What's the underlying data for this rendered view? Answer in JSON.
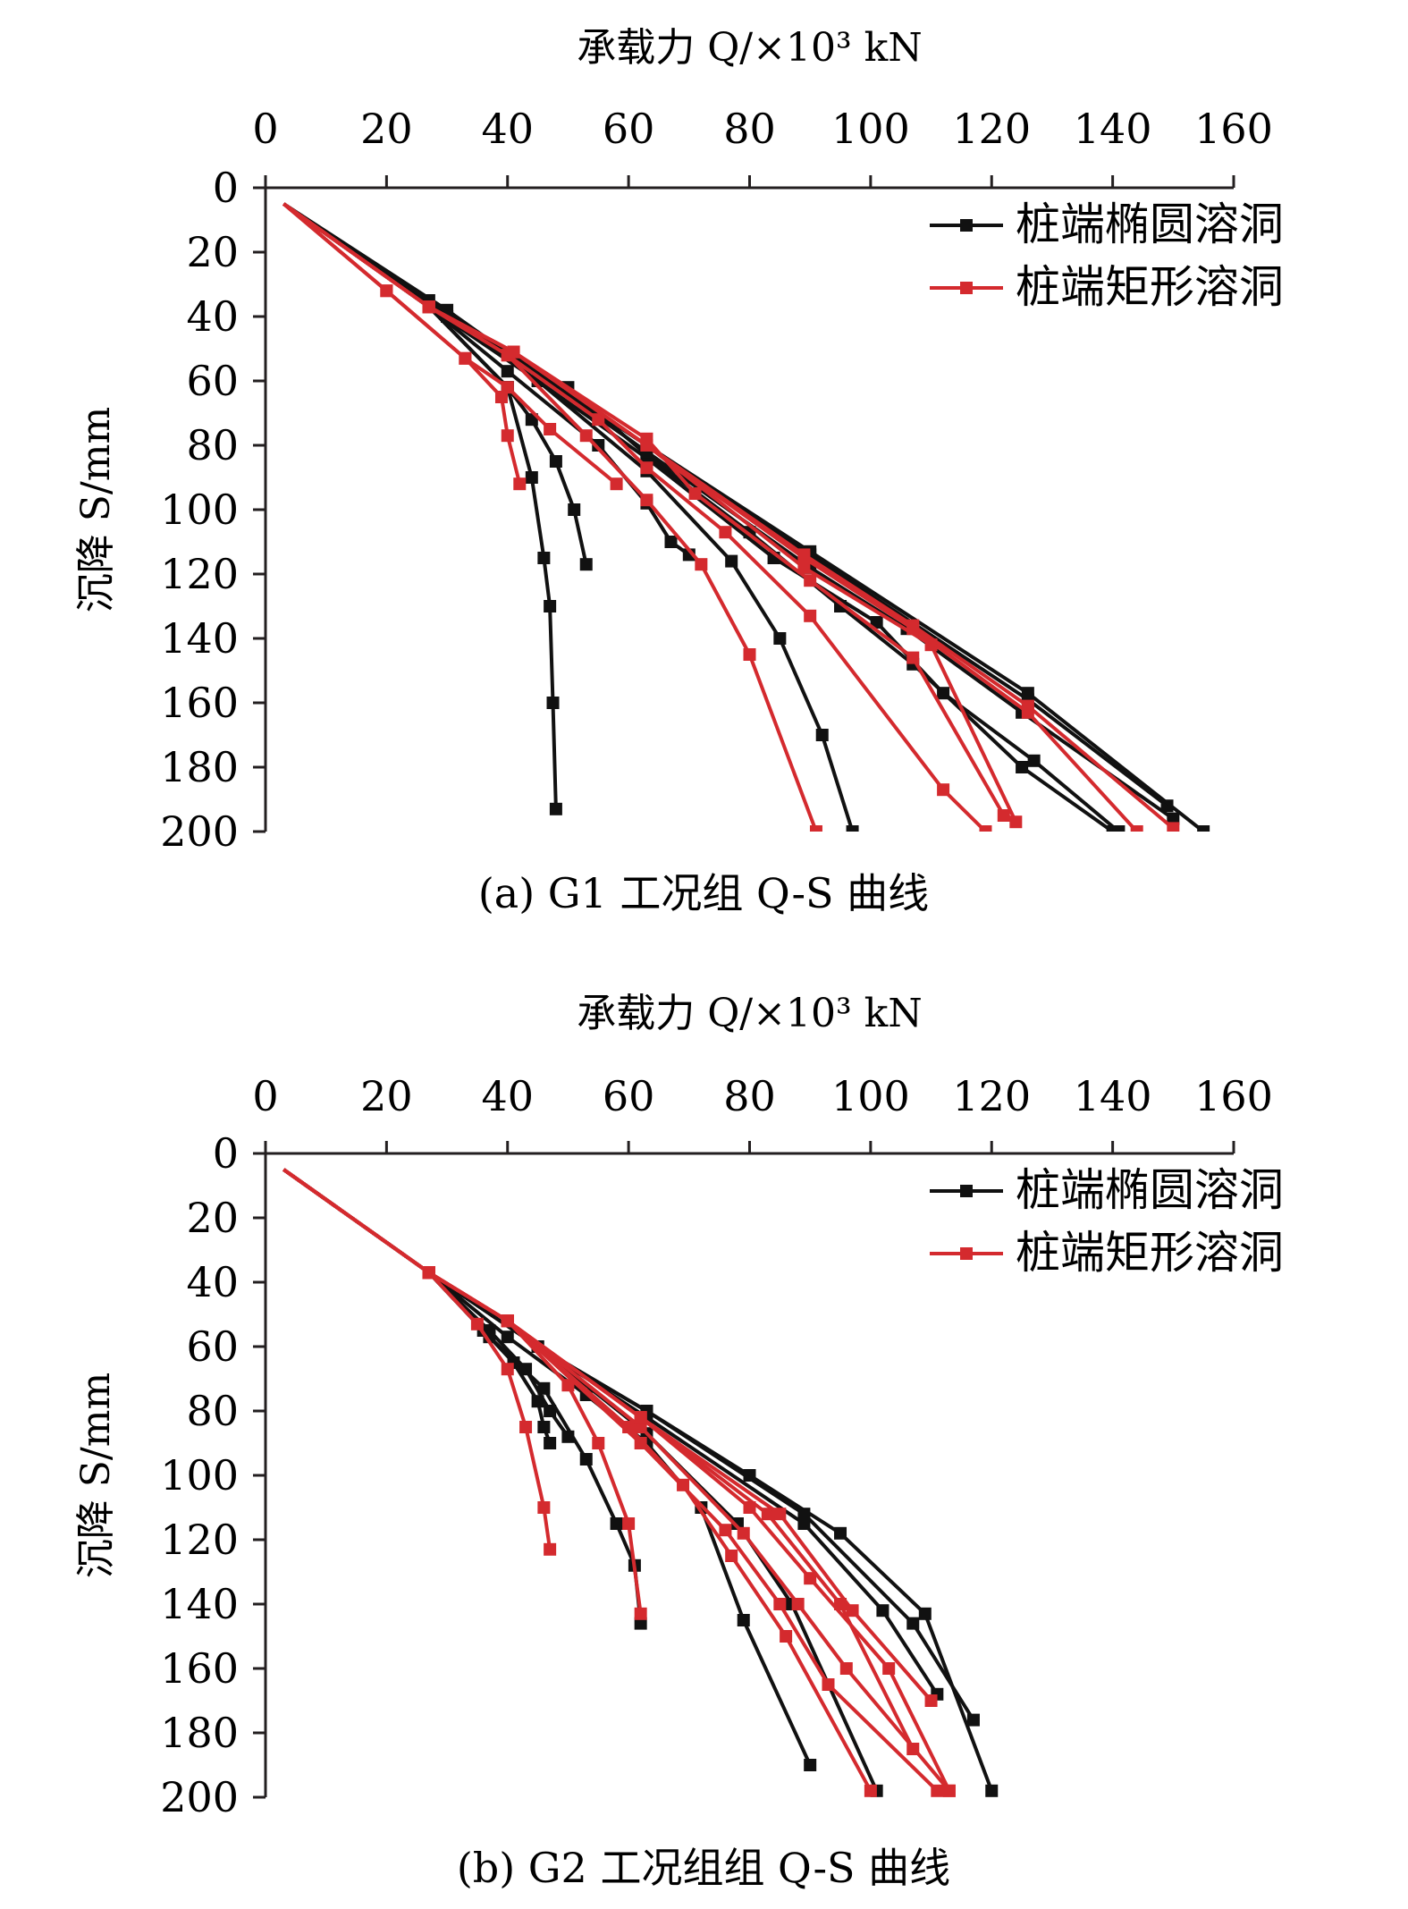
{
  "charts": [
    {
      "caption": "(a) G1 工况组 Q-S 曲线",
      "chart_data": {
        "type": "line",
        "xlabel": "承载力 Q/×10³ kN",
        "ylabel": "沉降 S/mm",
        "xlim": [
          0,
          160
        ],
        "ylim": [
          0,
          200
        ],
        "y_inverted": true,
        "x_axis_position": "top",
        "xticks": [
          0,
          20,
          40,
          60,
          80,
          100,
          120,
          140,
          160
        ],
        "yticks": [
          0,
          20,
          40,
          60,
          80,
          100,
          120,
          140,
          160,
          180,
          200
        ],
        "legend": "top-right",
        "series": [
          {
            "name": "桩端椭圆溶洞",
            "color": "#111111",
            "x": [
              3,
              27,
              40,
              44,
              46,
              47,
              47.5,
              48
            ],
            "y": [
              5,
              37,
              62,
              90,
              115,
              130,
              160,
              193
            ]
          },
          {
            "name": "",
            "color": "#111111",
            "x": [
              3,
              27,
              40,
              44,
              48,
              51,
              53
            ],
            "y": [
              5,
              37,
              62,
              72,
              85,
              100,
              117
            ]
          },
          {
            "name": "",
            "color": "#111111",
            "x": [
              3,
              27,
              40,
              55,
              63,
              67,
              70
            ],
            "y": [
              5,
              37,
              57,
              80,
              98,
              110,
              114
            ]
          },
          {
            "name": "",
            "color": "#111111",
            "x": [
              3,
              27,
              45,
              63,
              77,
              85,
              92,
              97
            ],
            "y": [
              5,
              37,
              60,
              88,
              116,
              140,
              170,
              200
            ]
          },
          {
            "name": "",
            "color": "#111111",
            "x": [
              3,
              30,
              50,
              63,
              80,
              95,
              107,
              125,
              140
            ],
            "y": [
              5,
              40,
              62,
              83,
              107,
              130,
              148,
              180,
              200
            ]
          },
          {
            "name": "",
            "color": "#111111",
            "x": [
              3,
              30,
              63,
              84,
              101,
              112,
              127,
              141
            ],
            "y": [
              5,
              40,
              84,
              115,
              135,
              157,
              178,
              200
            ]
          },
          {
            "name": "",
            "color": "#111111",
            "x": [
              3,
              30,
              63,
              90,
              106,
              125,
              150
            ],
            "y": [
              5,
              38,
              82,
              118,
              137,
              163,
              196
            ]
          },
          {
            "name": "",
            "color": "#111111",
            "x": [
              3,
              27,
              63,
              90,
              126,
              149
            ],
            "y": [
              5,
              35,
              80,
              114,
              159,
              192
            ]
          },
          {
            "name": "",
            "color": "#111111",
            "x": [
              3,
              27,
              63,
              90,
              126,
              155
            ],
            "y": [
              5,
              35,
              80,
              113,
              157,
              200
            ]
          },
          {
            "name": "桩端矩形溶洞",
            "color": "#d42a2e",
            "x": [
              3,
              20,
              33,
              39,
              40,
              42
            ],
            "y": [
              5,
              32,
              53,
              65,
              77,
              92
            ]
          },
          {
            "name": "",
            "color": "#d42a2e",
            "x": [
              3,
              20,
              33,
              40,
              47,
              58
            ],
            "y": [
              5,
              32,
              53,
              62,
              75,
              92
            ]
          },
          {
            "name": "",
            "color": "#d42a2e",
            "x": [
              3,
              27,
              40,
              53,
              63,
              72,
              80,
              91
            ],
            "y": [
              5,
              37,
              52,
              77,
              97,
              117,
              145,
              200
            ]
          },
          {
            "name": "",
            "color": "#d42a2e",
            "x": [
              3,
              27,
              40,
              55,
              63,
              76,
              90,
              112,
              119
            ],
            "y": [
              5,
              37,
              52,
              72,
              87,
              107,
              133,
              187,
              200
            ]
          },
          {
            "name": "",
            "color": "#d42a2e",
            "x": [
              3,
              27,
              41,
              63,
              71,
              90,
              107,
              122
            ],
            "y": [
              5,
              37,
              51,
              78,
              95,
              122,
              146,
              195
            ]
          },
          {
            "name": "",
            "color": "#d42a2e",
            "x": [
              3,
              27,
              41,
              63,
              89,
              110,
              124
            ],
            "y": [
              5,
              37,
              51,
              80,
              118,
              142,
              197
            ]
          },
          {
            "name": "",
            "color": "#d42a2e",
            "x": [
              3,
              27,
              41,
              63,
              89,
              107,
              126,
              144
            ],
            "y": [
              5,
              37,
              51,
              80,
              115,
              137,
              163,
              200
            ]
          },
          {
            "name": "",
            "color": "#d42a2e",
            "x": [
              3,
              27,
              41,
              63,
              89,
              107,
              126,
              150
            ],
            "y": [
              5,
              37,
              51,
              80,
              114,
              136,
              161,
              199
            ]
          }
        ]
      }
    },
    {
      "caption": "(b) G2 工况组组 Q-S 曲线",
      "chart_data": {
        "type": "line",
        "xlabel": "承载力 Q/×10³ kN",
        "ylabel": "沉降 S/mm",
        "xlim": [
          0,
          160
        ],
        "ylim": [
          0,
          200
        ],
        "y_inverted": true,
        "x_axis_position": "top",
        "xticks": [
          0,
          20,
          40,
          60,
          80,
          100,
          120,
          140,
          160
        ],
        "yticks": [
          0,
          20,
          40,
          60,
          80,
          100,
          120,
          140,
          160,
          180,
          200
        ],
        "legend": "top-right",
        "series": [
          {
            "name": "桩端椭圆溶洞",
            "color": "#111111",
            "x": [
              3,
              27,
              36,
              41,
              45,
              46,
              47
            ],
            "y": [
              5,
              37,
              55,
              65,
              77,
              85,
              90
            ]
          },
          {
            "name": "",
            "color": "#111111",
            "x": [
              3,
              27,
              37,
              43,
              47,
              50
            ],
            "y": [
              5,
              37,
              55,
              67,
              80,
              88
            ]
          },
          {
            "name": "",
            "color": "#111111",
            "x": [
              3,
              27,
              37,
              46,
              53,
              58,
              61,
              62
            ],
            "y": [
              5,
              37,
              57,
              73,
              95,
              115,
              128,
              146
            ]
          },
          {
            "name": "",
            "color": "#111111",
            "x": [
              3,
              27,
              40,
              53,
              63,
              72,
              79,
              90
            ],
            "y": [
              5,
              37,
              57,
              75,
              90,
              110,
              145,
              190
            ]
          },
          {
            "name": "",
            "color": "#111111",
            "x": [
              3,
              27,
              45,
              63,
              78,
              87,
              101
            ],
            "y": [
              5,
              37,
              60,
              87,
              115,
              140,
              198
            ]
          },
          {
            "name": "",
            "color": "#111111",
            "x": [
              3,
              27,
              45,
              63,
              80,
              95,
              109,
              120
            ],
            "y": [
              5,
              37,
              60,
              80,
              100,
              118,
              143,
              198
            ]
          },
          {
            "name": "",
            "color": "#111111",
            "x": [
              3,
              27,
              45,
              63,
              89,
              107,
              117
            ],
            "y": [
              5,
              37,
              60,
              80,
              112,
              146,
              176
            ]
          },
          {
            "name": "",
            "color": "#111111",
            "x": [
              3,
              27,
              45,
              63,
              89,
              102,
              111
            ],
            "y": [
              5,
              37,
              60,
              82,
              115,
              142,
              168
            ]
          },
          {
            "name": "桩端矩形溶洞",
            "color": "#d42a2e",
            "x": [
              3,
              27,
              35,
              40,
              43,
              46,
              47
            ],
            "y": [
              5,
              37,
              53,
              67,
              85,
              110,
              123
            ]
          },
          {
            "name": "",
            "color": "#d42a2e",
            "x": [
              3,
              27,
              40,
              50,
              55,
              60,
              62
            ],
            "y": [
              5,
              37,
              52,
              72,
              90,
              115,
              143
            ]
          },
          {
            "name": "",
            "color": "#d42a2e",
            "x": [
              3,
              27,
              40,
              60,
              69,
              77,
              86,
              100
            ],
            "y": [
              5,
              37,
              52,
              85,
              103,
              125,
              150,
              198
            ]
          },
          {
            "name": "",
            "color": "#d42a2e",
            "x": [
              3,
              27,
              40,
              62,
              76,
              85,
              93,
              111
            ],
            "y": [
              5,
              37,
              52,
              90,
              117,
              140,
              165,
              198
            ]
          },
          {
            "name": "",
            "color": "#d42a2e",
            "x": [
              3,
              27,
              40,
              62,
              79,
              88,
              96,
              113
            ],
            "y": [
              5,
              37,
              52,
              85,
              118,
              140,
              160,
              198
            ]
          },
          {
            "name": "",
            "color": "#d42a2e",
            "x": [
              3,
              27,
              40,
              62,
              80,
              90,
              103,
              113
            ],
            "y": [
              5,
              37,
              52,
              82,
              110,
              132,
              160,
              198
            ]
          },
          {
            "name": "",
            "color": "#d42a2e",
            "x": [
              3,
              27,
              40,
              62,
              83,
              95,
              107
            ],
            "y": [
              5,
              37,
              52,
              82,
              112,
              140,
              185
            ]
          },
          {
            "name": "",
            "color": "#d42a2e",
            "x": [
              3,
              27,
              40,
              62,
              85,
              97,
              110
            ],
            "y": [
              5,
              37,
              52,
              82,
              112,
              142,
              170
            ]
          }
        ]
      }
    }
  ]
}
